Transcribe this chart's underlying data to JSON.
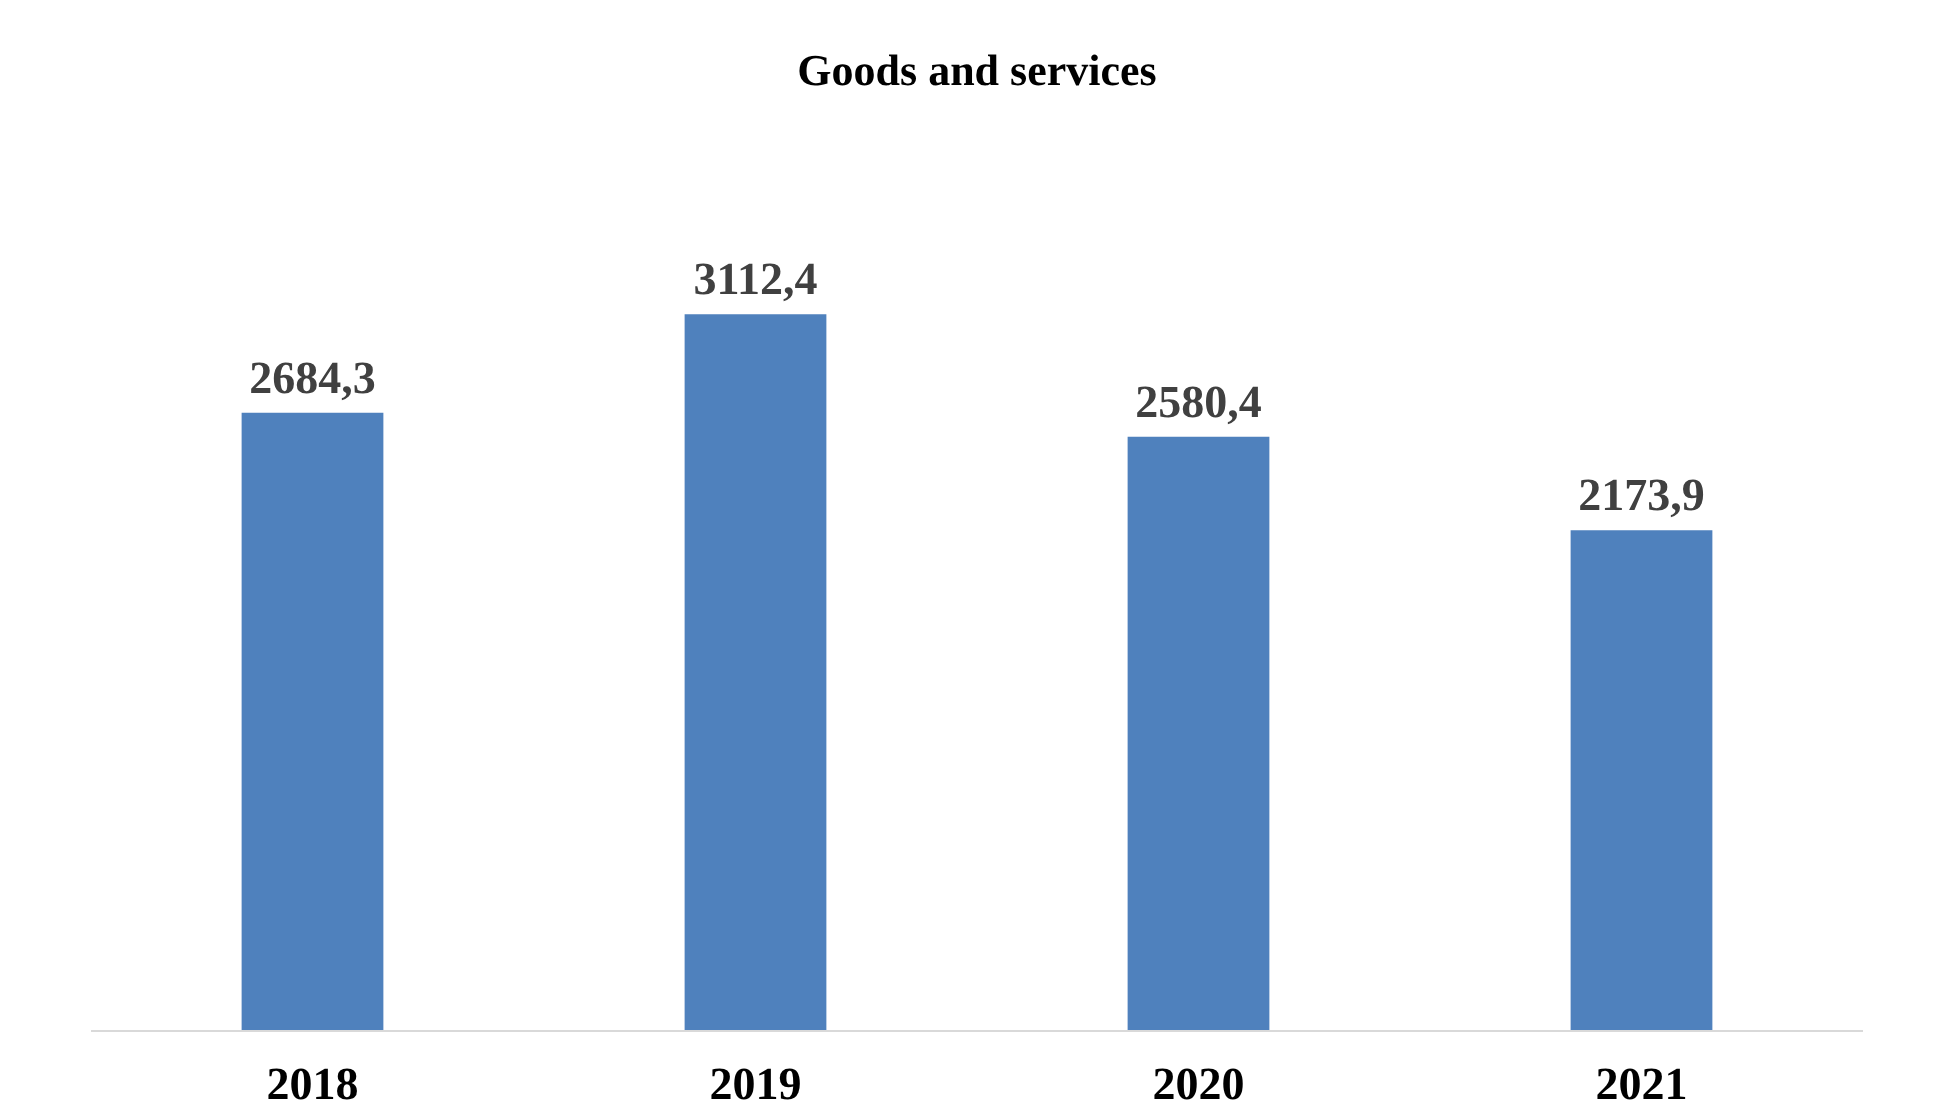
{
  "chart_data": {
    "type": "bar",
    "title": "Goods and services",
    "categories": [
      "2018",
      "2019",
      "2020",
      "2021"
    ],
    "values": [
      2684.3,
      3112.4,
      2580.4,
      2173.9
    ],
    "value_labels": [
      "2684,3",
      "3112,4",
      "2580,4",
      "2173,9"
    ],
    "color": "#4f81bd",
    "grid": false
  }
}
